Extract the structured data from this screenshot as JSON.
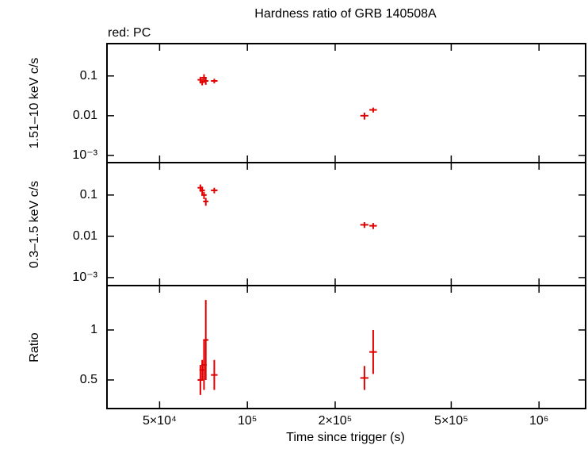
{
  "chart_data": [
    {
      "type": "scatter",
      "title": "Hardness ratio of GRB 140508A",
      "annotation": "red: PC",
      "ylabel": "1.51–10 keV c/s",
      "xlog": true,
      "ylog": true,
      "xlim": [
        33000,
        1445000
      ],
      "ylim": [
        0.00066,
        0.65
      ],
      "xticks": [
        {
          "value": 50000,
          "label": "5×10⁴"
        },
        {
          "value": 100000,
          "label": "10⁵"
        },
        {
          "value": 200000,
          "label": "2×10⁵"
        },
        {
          "value": 500000,
          "label": "5×10⁵"
        },
        {
          "value": 1000000,
          "label": "10⁶"
        }
      ],
      "yticks": [
        0.1,
        0.01,
        {
          "value": 0.001,
          "label": "10⁻³"
        }
      ],
      "x": [
        69000,
        70000,
        71000,
        72000,
        77000,
        252000,
        270000
      ],
      "xerr": [
        1500,
        1500,
        1500,
        1500,
        2000,
        8000,
        8000
      ],
      "series": [
        {
          "color": "#e00000",
          "values": [
            0.08,
            0.07,
            0.09,
            0.075,
            0.075,
            0.01,
            0.014
          ],
          "yerr": [
            0.015,
            0.012,
            0.02,
            0.015,
            0.01,
            0.002,
            0.002
          ]
        }
      ]
    },
    {
      "type": "scatter",
      "ylabel": "0.3–1.5 keV c/s",
      "xlog": true,
      "ylog": true,
      "xlim": [
        33000,
        1445000
      ],
      "ylim": [
        0.00064,
        0.61
      ],
      "xticks": [
        {
          "value": 50000,
          "label": "5×10⁴"
        },
        {
          "value": 100000,
          "label": "10⁵"
        },
        {
          "value": 200000,
          "label": "2×10⁵"
        },
        {
          "value": 500000,
          "label": "5×10⁵"
        },
        {
          "value": 1000000,
          "label": "10⁶"
        }
      ],
      "yticks": [
        0.1,
        0.01,
        {
          "value": 0.001,
          "label": "10⁻³"
        }
      ],
      "x": [
        69000,
        70000,
        71000,
        72000,
        77000,
        252000,
        270000
      ],
      "xerr": [
        1500,
        1500,
        1500,
        1500,
        2000,
        8000,
        8000
      ],
      "series": [
        {
          "color": "#e00000",
          "values": [
            0.15,
            0.13,
            0.1,
            0.07,
            0.13,
            0.019,
            0.018
          ],
          "yerr": [
            0.03,
            0.03,
            0.02,
            0.015,
            0.02,
            0.003,
            0.003
          ]
        }
      ]
    },
    {
      "type": "scatter",
      "ylabel": "Ratio",
      "xlabel": "Time since trigger (s)",
      "xlog": true,
      "ylog": false,
      "xlim": [
        33000,
        1445000
      ],
      "ylim": [
        0.214,
        1.444
      ],
      "xticks": [
        {
          "value": 50000,
          "label": "5×10⁴"
        },
        {
          "value": 100000,
          "label": "10⁵"
        },
        {
          "value": 200000,
          "label": "2×10⁵"
        },
        {
          "value": 500000,
          "label": "5×10⁵"
        },
        {
          "value": 1000000,
          "label": "10⁶"
        }
      ],
      "yticks": [
        0.5,
        1
      ],
      "x": [
        69000,
        70000,
        71000,
        72000,
        77000,
        252000,
        270000
      ],
      "xerr": [
        1500,
        1500,
        1500,
        1500,
        2000,
        8000,
        8000
      ],
      "series": [
        {
          "color": "#e00000",
          "values": [
            0.5,
            0.6,
            0.65,
            0.9,
            0.55,
            0.52,
            0.78
          ],
          "yerr": [
            0.15,
            0.1,
            0.25,
            0.4,
            0.15,
            0.12,
            0.22
          ]
        }
      ]
    }
  ]
}
